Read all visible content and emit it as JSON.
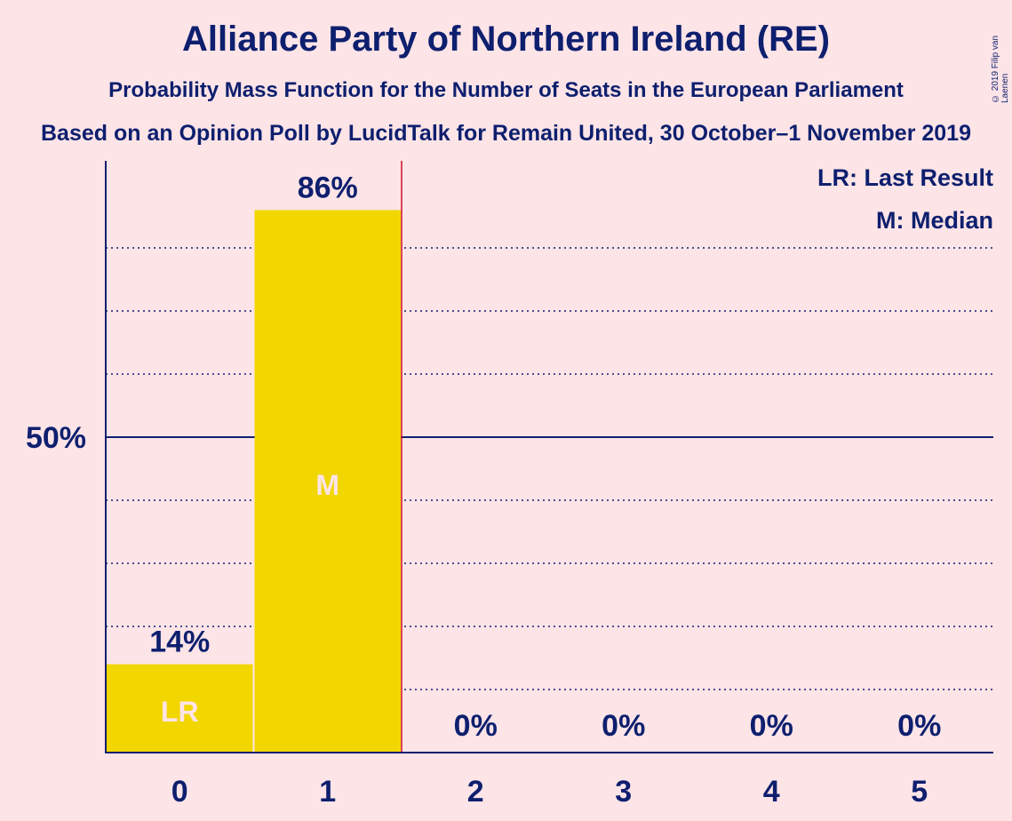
{
  "title": "Alliance Party of Northern Ireland (RE)",
  "subtitle": "Probability Mass Function for the Number of Seats in the European Parliament",
  "source": "Based on an Opinion Poll by LucidTalk for Remain United, 30 October–1 November 2019",
  "copyright": "© 2019 Filip van Laenen",
  "legend": {
    "last_result": "LR: Last Result",
    "median": "M: Median"
  },
  "colors": {
    "background": "#FDE4E7",
    "bar": "#F2D600",
    "axis": "#0E1F6E",
    "last_result_line": "#D10F2C",
    "bar_marker_text": "#FDE4E7"
  },
  "chart_data": {
    "type": "bar",
    "categories": [
      "0",
      "1",
      "2",
      "3",
      "4",
      "5"
    ],
    "values": [
      14,
      86,
      0,
      0,
      0,
      0
    ],
    "value_labels": [
      "14%",
      "86%",
      "0%",
      "0%",
      "0%",
      "0%"
    ],
    "bar_markers": [
      "LR",
      "M",
      "",
      "",
      "",
      ""
    ],
    "ylim": [
      0,
      94
    ],
    "y_ticks": [
      {
        "value": 50,
        "label": "50%"
      }
    ],
    "gridlines_dotted": [
      10,
      20,
      30,
      40,
      60,
      70,
      80
    ],
    "gridline_solid": 50,
    "last_result_line_after_category": "1",
    "legend_position": "top-right"
  }
}
